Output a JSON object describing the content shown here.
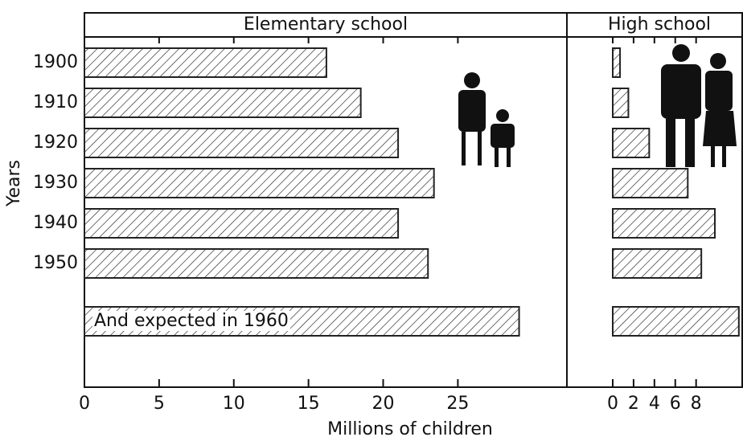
{
  "chart_data": [
    {
      "type": "bar",
      "title": "Elementary school",
      "x_label": "Millions of children",
      "y_label": "Years",
      "categories": [
        "1900",
        "1910",
        "1920",
        "1930",
        "1940",
        "1950",
        null
      ],
      "values": [
        16.2,
        18.5,
        21.0,
        23.4,
        21.0,
        23.0,
        29.1
      ],
      "annotation": "And expected in 1960",
      "xlim": [
        0,
        32.3
      ],
      "xticks": [
        0,
        5,
        10,
        15,
        20,
        25
      ],
      "color": "#222"
    },
    {
      "type": "bar",
      "title": "High school",
      "values": [
        0.7,
        1.5,
        3.5,
        7.2,
        9.8,
        8.5,
        12.1
      ],
      "xlim": [
        0,
        12.5
      ],
      "xticks": [
        0,
        2,
        4,
        6,
        8
      ],
      "color": "#222"
    }
  ]
}
